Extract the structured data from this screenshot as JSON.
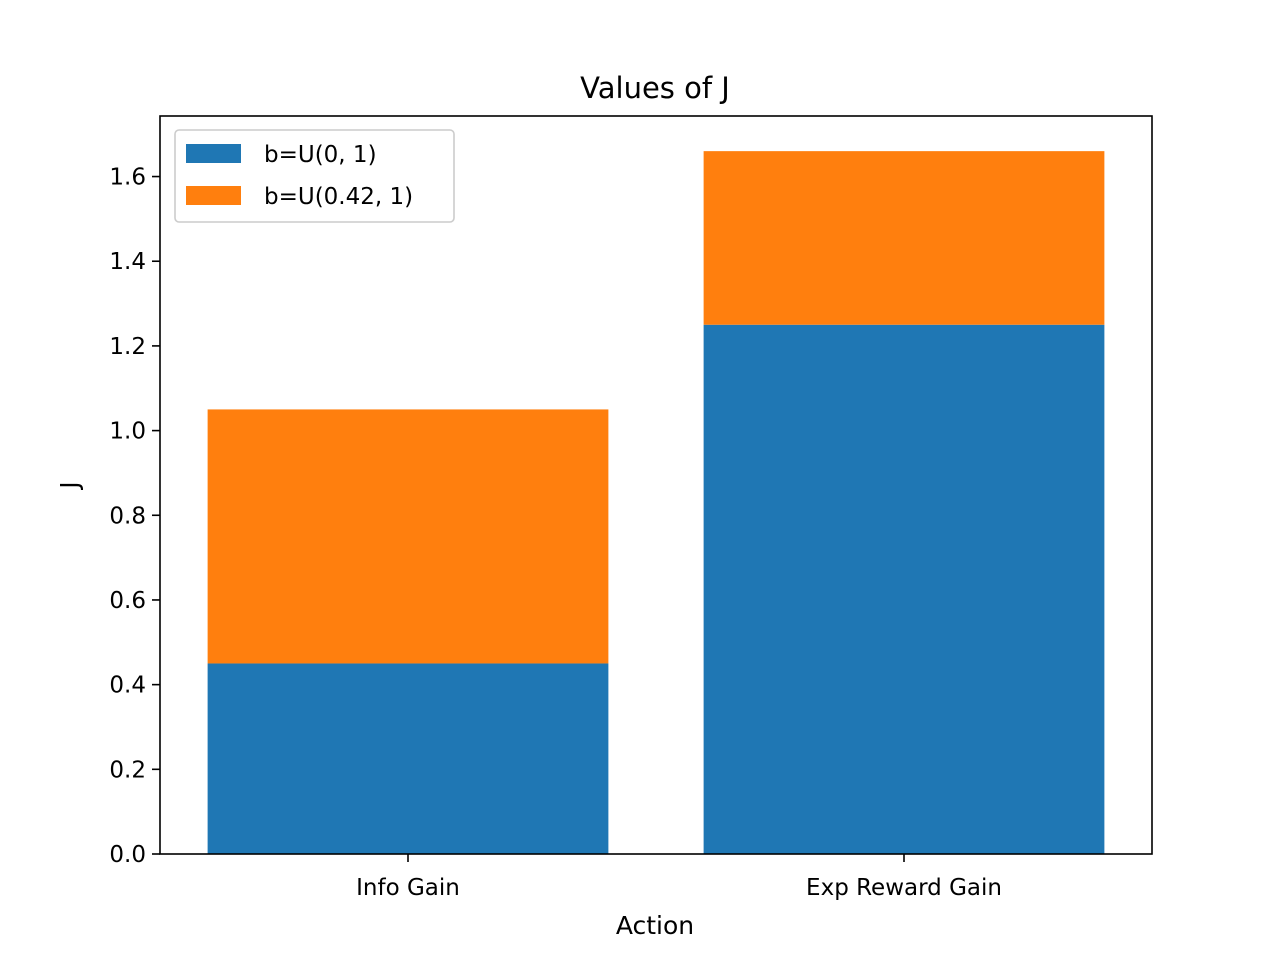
{
  "chart_data": {
    "type": "bar",
    "stacked": true,
    "title": "Values of J",
    "xlabel": "Action",
    "ylabel": "J",
    "categories": [
      "Info Gain",
      "Exp Reward Gain"
    ],
    "series": [
      {
        "name": "b=U(0, 1)",
        "color": "#1f77b4",
        "values": [
          0.45,
          1.25
        ]
      },
      {
        "name": "b=U(0.42, 1)",
        "color": "#ff7f0e",
        "values": [
          0.6,
          0.41
        ]
      }
    ],
    "ylim": [
      0,
      1.743
    ],
    "yticks": [
      0.0,
      0.2,
      0.4,
      0.6,
      0.8,
      1.0,
      1.2,
      1.4,
      1.6
    ],
    "grid": false,
    "legend_position": "upper-left"
  }
}
